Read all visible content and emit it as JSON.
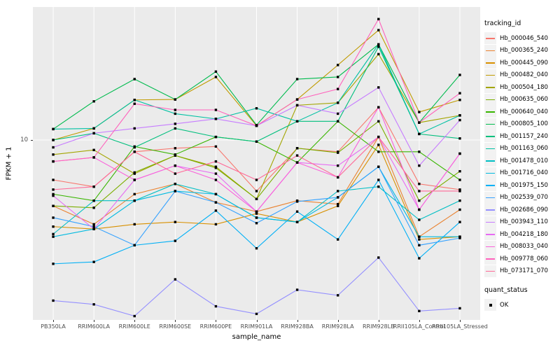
{
  "figure": {
    "panel_bg": "#EBEBEB",
    "grid_color": "#FFFFFF",
    "tick_color": "#333333",
    "tick_label_color": "#4D4D4D"
  },
  "chart_data": {
    "type": "line",
    "title": "",
    "xlabel": "sample_name",
    "ylabel": "FPKM + 1",
    "y_scale": "log10",
    "ylim": [
      1,
      55
    ],
    "y_ticks": [
      "10"
    ],
    "grid": true,
    "legend_position": "right",
    "point_marker": "black-square",
    "categories": [
      "PB350LA",
      "RRIM600LA",
      "RRIM600LE",
      "RRIM600SE",
      "RRIM600PE",
      "RRIM901LA",
      "RRIM928BA",
      "RRIM928LA",
      "RRIM928LB",
      "RRII105LA_Control",
      "RRII105LA_Stressed"
    ],
    "series": [
      {
        "name": "Hb_000046_540",
        "color": "#F8766D",
        "values": [
          6.0,
          5.5,
          8.6,
          9.0,
          9.2,
          5.2,
          9.0,
          8.6,
          15.2,
          5.7,
          5.3
        ]
      },
      {
        "name": "Hb_000365_240",
        "color": "#EA8331",
        "values": [
          4.3,
          3.4,
          5.0,
          5.7,
          4.5,
          4.0,
          4.6,
          4.4,
          10.4,
          2.9,
          4.1
        ]
      },
      {
        "name": "Hb_000445_090",
        "color": "#D89000",
        "values": [
          3.3,
          3.2,
          3.4,
          3.5,
          3.4,
          3.9,
          3.5,
          4.3,
          9.4,
          2.8,
          2.9
        ]
      },
      {
        "name": "Hb_000482_040",
        "color": "#C09B00",
        "values": [
          10.0,
          11.6,
          16.7,
          16.8,
          22.4,
          12.0,
          16.8,
          26.1,
          40.8,
          14.3,
          16.7
        ]
      },
      {
        "name": "Hb_000504_180",
        "color": "#A3A500",
        "values": [
          8.3,
          8.8,
          6.5,
          8.2,
          7.1,
          4.7,
          15.6,
          16.1,
          30.0,
          12.5,
          13.7
        ]
      },
      {
        "name": "Hb_000635_060",
        "color": "#7CAE00",
        "values": [
          4.3,
          4.2,
          6.6,
          8.2,
          7.0,
          4.7,
          9.0,
          8.5,
          12.7,
          4.6,
          6.7
        ]
      },
      {
        "name": "Hb_000640_040",
        "color": "#39B600",
        "values": [
          5.0,
          4.6,
          9.2,
          8.3,
          10.4,
          9.8,
          7.5,
          12.7,
          8.6,
          8.6,
          6.0
        ]
      },
      {
        "name": "Hb_000805_100",
        "color": "#00BB4E",
        "values": [
          11.5,
          16.4,
          21.8,
          16.8,
          24.0,
          12.1,
          21.8,
          22.4,
          34.0,
          12.5,
          23.0
        ]
      },
      {
        "name": "Hb_001157_240",
        "color": "#00BF7D",
        "values": [
          10.0,
          10.9,
          9.1,
          11.6,
          10.4,
          9.8,
          12.7,
          12.7,
          33.0,
          10.8,
          10.2
        ]
      },
      {
        "name": "Hb_001163_060",
        "color": "#00C1A3",
        "values": [
          11.5,
          11.6,
          16.7,
          14.0,
          13.1,
          15.0,
          12.7,
          16.1,
          34.0,
          10.8,
          13.7
        ]
      },
      {
        "name": "Hb_001478_010",
        "color": "#00BFC4",
        "values": [
          3.0,
          4.6,
          4.6,
          5.7,
          5.0,
          3.7,
          3.5,
          5.2,
          5.5,
          3.6,
          4.6
        ]
      },
      {
        "name": "Hb_001716_040",
        "color": "#00BAE0",
        "values": [
          2.9,
          3.2,
          4.6,
          5.2,
          5.0,
          3.7,
          3.5,
          4.8,
          7.1,
          2.9,
          2.9
        ]
      },
      {
        "name": "Hb_001975_150",
        "color": "#00B0F6",
        "values": [
          2.05,
          2.1,
          2.6,
          2.75,
          4.05,
          2.5,
          4.0,
          2.8,
          6.0,
          2.2,
          3.5
        ]
      },
      {
        "name": "Hb_002539_070",
        "color": "#35A2FF",
        "values": [
          3.7,
          3.3,
          2.6,
          5.2,
          4.5,
          3.45,
          4.55,
          4.8,
          7.1,
          2.6,
          2.85
        ]
      },
      {
        "name": "Hb_002686_090",
        "color": "#9590FF",
        "values": [
          1.28,
          1.22,
          1.05,
          1.68,
          1.19,
          1.08,
          1.47,
          1.37,
          2.22,
          1.12,
          1.16
        ]
      },
      {
        "name": "Hb_003943_110",
        "color": "#C77CFF",
        "values": [
          9.1,
          10.9,
          11.6,
          12.3,
          13.1,
          12.0,
          15.6,
          14.0,
          19.6,
          7.2,
          12.9
        ]
      },
      {
        "name": "Hb_004218_180",
        "color": "#E76BF3",
        "values": [
          4.9,
          3.2,
          6.0,
          7.2,
          6.5,
          4.0,
          7.5,
          7.2,
          10.4,
          4.1,
          8.4
        ]
      },
      {
        "name": "Hb_008033_040",
        "color": "#FA62DB",
        "values": [
          7.6,
          8.0,
          6.0,
          7.2,
          6.0,
          4.0,
          7.5,
          6.2,
          15.2,
          4.1,
          8.4
        ]
      },
      {
        "name": "Hb_009778_060",
        "color": "#FF62BC",
        "values": [
          7.6,
          8.0,
          15.9,
          14.7,
          14.7,
          12.0,
          16.8,
          19.2,
          47.0,
          12.5,
          18.2
        ]
      },
      {
        "name": "Hb_073171_070",
        "color": "#FF6A98",
        "values": [
          5.3,
          5.5,
          8.6,
          6.5,
          7.6,
          6.0,
          8.2,
          6.2,
          10.4,
          5.2,
          5.2
        ]
      }
    ]
  },
  "legend": {
    "tracking_title": "tracking_id",
    "quant_title": "quant_status",
    "quant_items": [
      {
        "label": "OK"
      }
    ]
  }
}
